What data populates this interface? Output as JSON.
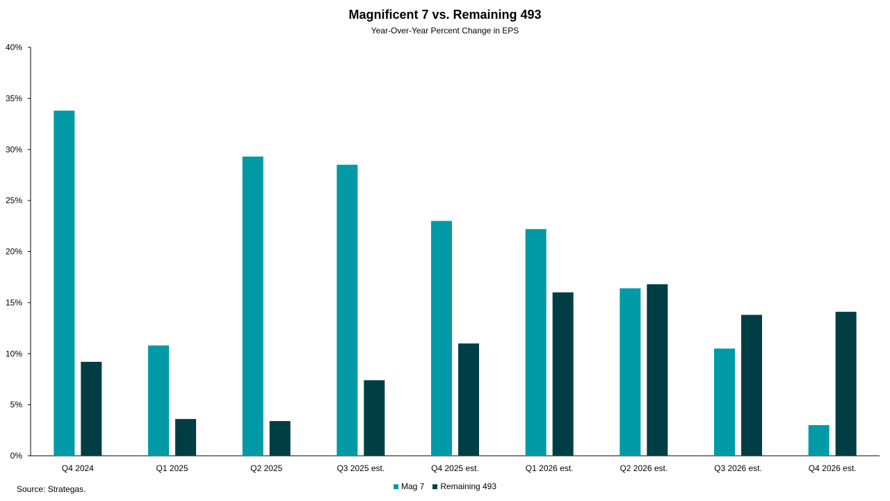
{
  "colors": {
    "mag7": "#009aa6",
    "remaining": "#003e46",
    "axis": "#000000"
  },
  "source": "Source: Strategas.",
  "chart_data": {
    "type": "bar",
    "title": "Magnificent 7 vs. Remaining 493",
    "subtitle": "Year-Over-Year Percent Change in EPS",
    "xlabel": "",
    "ylabel": "",
    "ylim": [
      0,
      40
    ],
    "yticks": [
      "0%",
      "5%",
      "10%",
      "15%",
      "20%",
      "25%",
      "30%",
      "35%",
      "40%"
    ],
    "grid": false,
    "legend_position": "bottom",
    "categories": [
      "Q4 2024",
      "Q1 2025",
      "Q2 2025",
      "Q3 2025 est.",
      "Q4 2025 est.",
      "Q1 2026 est.",
      "Q2 2026 est.",
      "Q3 2026 est.",
      "Q4 2026 est."
    ],
    "series": [
      {
        "name": "Mag 7",
        "color": "#009aa6",
        "values": [
          33.8,
          10.8,
          29.3,
          28.5,
          23.0,
          22.2,
          16.4,
          10.5,
          3.0
        ]
      },
      {
        "name": "Remaining 493",
        "color": "#003e46",
        "values": [
          9.2,
          3.6,
          3.4,
          7.4,
          11.0,
          16.0,
          16.8,
          13.8,
          14.1
        ]
      }
    ]
  }
}
